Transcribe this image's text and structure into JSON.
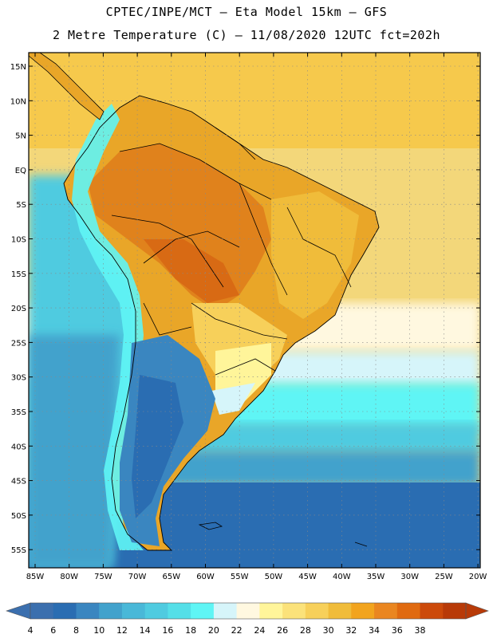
{
  "title_line1": "CPTEC/INPE/MCT –  Eta Model 15km – GFS",
  "title_line2": "2 Metre Temperature (C) – 11/08/2020 12UTC fct=202h",
  "lat_labels": [
    "15N",
    "10N",
    "5N",
    "EQ",
    "5S",
    "10S",
    "15S",
    "20S",
    "25S",
    "30S",
    "35S",
    "40S",
    "45S",
    "50S",
    "55S"
  ],
  "lon_labels": [
    "85W",
    "80W",
    "75W",
    "70W",
    "65W",
    "60W",
    "55W",
    "50W",
    "45W",
    "40W",
    "35W",
    "30W",
    "25W",
    "20W"
  ],
  "colorbar": {
    "labels": [
      "4",
      "6",
      "8",
      "10",
      "12",
      "14",
      "16",
      "18",
      "20",
      "22",
      "24",
      "26",
      "28",
      "30",
      "32",
      "34",
      "36",
      "38"
    ],
    "colors": [
      "#3b6fae",
      "#2a6db2",
      "#3a86c0",
      "#42a2cc",
      "#49b8d8",
      "#4fcbe0",
      "#55dfe8",
      "#5ff5f5",
      "#d6f5fa",
      "#fff8e0",
      "#fff59a",
      "#fbe27a",
      "#f7d05a",
      "#f0bc3a",
      "#f2a41e",
      "#ea8620",
      "#e06a10",
      "#cc4a0a",
      "#b83a08"
    ],
    "low_arrow_color": "#3b6fae",
    "high_arrow_color": "#b83a08"
  }
}
